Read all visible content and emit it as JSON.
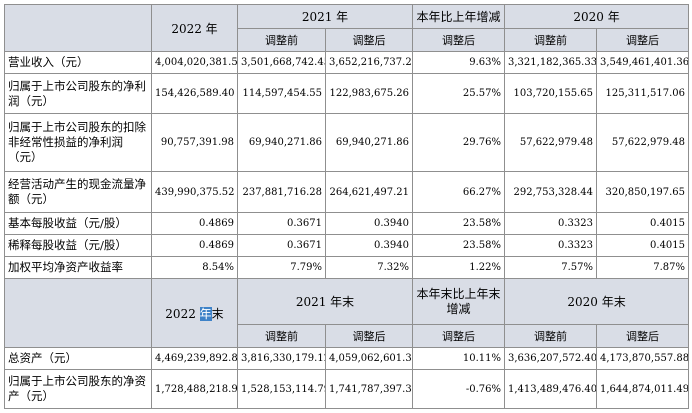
{
  "table1": {
    "header": {
      "col_2022": "2022 年",
      "col_2021": "2021 年",
      "col_change": "本年比上年增减",
      "col_2020": "2020 年",
      "sub_before": "调整前",
      "sub_after": "调整后"
    },
    "rows": [
      {
        "label": "营业收入（元）",
        "v2022": "4,004,020,381.58",
        "v2021_before": "3,501,668,742.45",
        "v2021_after": "3,652,216,737.24",
        "change": "9.63%",
        "v2020_before": "3,321,182,365.33",
        "v2020_after": "3,549,461,401.36"
      },
      {
        "label": "归属于上市公司股东的净利润（元）",
        "v2022": "154,426,589.40",
        "v2021_before": "114,597,454.55",
        "v2021_after": "122,983,675.26",
        "change": "25.57%",
        "v2020_before": "103,720,155.65",
        "v2020_after": "125,311,517.06"
      },
      {
        "label": "归属于上市公司股东的扣除非经常性损益的净利润（元）",
        "v2022": "90,757,391.98",
        "v2021_before": "69,940,271.86",
        "v2021_after": "69,940,271.86",
        "change": "29.76%",
        "v2020_before": "57,622,979.48",
        "v2020_after": "57,622,979.48"
      },
      {
        "label": "经营活动产生的现金流量净额（元）",
        "v2022": "439,990,375.52",
        "v2021_before": "237,881,716.28",
        "v2021_after": "264,621,497.21",
        "change": "66.27%",
        "v2020_before": "292,753,328.44",
        "v2020_after": "320,850,197.65"
      },
      {
        "label": "基本每股收益（元/股）",
        "v2022": "0.4869",
        "v2021_before": "0.3671",
        "v2021_after": "0.3940",
        "change": "23.58%",
        "v2020_before": "0.3323",
        "v2020_after": "0.4015"
      },
      {
        "label": "稀释每股收益（元/股）",
        "v2022": "0.4869",
        "v2021_before": "0.3671",
        "v2021_after": "0.3940",
        "change": "23.58%",
        "v2020_before": "0.3323",
        "v2020_after": "0.4015"
      },
      {
        "label": "加权平均净资产收益率",
        "v2022": "8.54%",
        "v2021_before": "7.79%",
        "v2021_after": "7.32%",
        "change": "1.22%",
        "v2020_before": "7.57%",
        "v2020_after": "7.87%"
      }
    ]
  },
  "table2": {
    "header": {
      "col_2022_pre": "2022 ",
      "col_2022_hl": "年",
      "col_2022_post": "末",
      "col_2021": "2021 年末",
      "col_change": "本年末比上年末增减",
      "col_2020": "2020 年末",
      "sub_before": "调整前",
      "sub_after": "调整后"
    },
    "rows": [
      {
        "label": "总资产（元）",
        "v2022": "4,469,239,892.87",
        "v2021_before": "3,816,330,179.12",
        "v2021_after": "4,059,062,601.38",
        "change": "10.11%",
        "v2020_before": "3,636,207,572.40",
        "v2020_after": "4,173,870,557.88"
      },
      {
        "label": "归属于上市公司股东的净资产（元）",
        "v2022": "1,728,488,218.94",
        "v2021_before": "1,528,153,114.79",
        "v2021_after": "1,741,787,397.33",
        "change": "-0.76%",
        "v2020_before": "1,413,489,476.40",
        "v2020_after": "1,644,874,011.49"
      }
    ]
  }
}
